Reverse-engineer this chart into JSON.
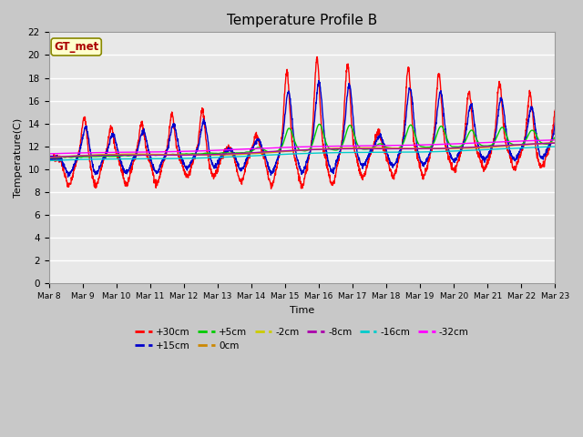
{
  "title": "Temperature Profile B",
  "xlabel": "Time",
  "ylabel": "Temperature(C)",
  "annotation": "GT_met",
  "ylim": [
    0,
    22
  ],
  "series_labels": [
    "+30cm",
    "+15cm",
    "+5cm",
    "0cm",
    "-2cm",
    "-8cm",
    "-16cm",
    "-32cm"
  ],
  "series_colors": [
    "#ff0000",
    "#0000cc",
    "#00cc00",
    "#cc8800",
    "#cccc00",
    "#aa00aa",
    "#00cccc",
    "#ff00ff"
  ],
  "tick_labels": [
    "Mar 8",
    "Mar 9",
    "Mar 10",
    "Mar 11",
    "Mar 12",
    "Mar 13",
    "Mar 14",
    "Mar 15",
    "Mar 16",
    "Mar 17",
    "Mar 18",
    "Mar 19",
    "Mar 20",
    "Mar 21",
    "Mar 22",
    "Mar 23"
  ],
  "title_fontsize": 11,
  "axis_fontsize": 8,
  "legend_fontsize": 8,
  "bg_color": "#e8e8e8"
}
